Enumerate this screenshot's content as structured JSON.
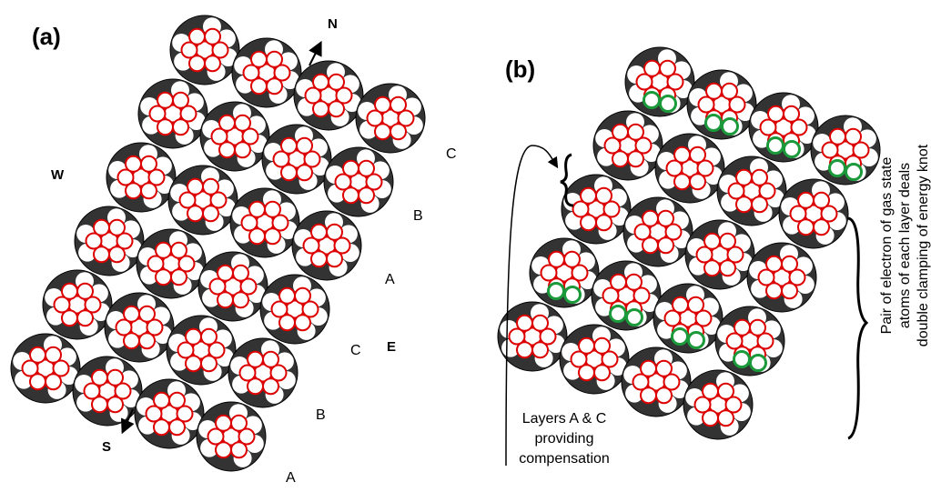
{
  "panel_a": {
    "label": "(a)",
    "directions": {
      "north": "N",
      "south": "S",
      "west": "W",
      "east": "E"
    },
    "layer_labels": [
      "C",
      "B",
      "A",
      "C",
      "B",
      "A"
    ]
  },
  "panel_b": {
    "label": "(b)",
    "left_note": [
      "Layers A & C",
      "providing",
      "compensation"
    ],
    "right_note": [
      "Pair of electron of gas state",
      "atoms of each layer deals",
      "double clamping of energy knot"
    ]
  }
}
